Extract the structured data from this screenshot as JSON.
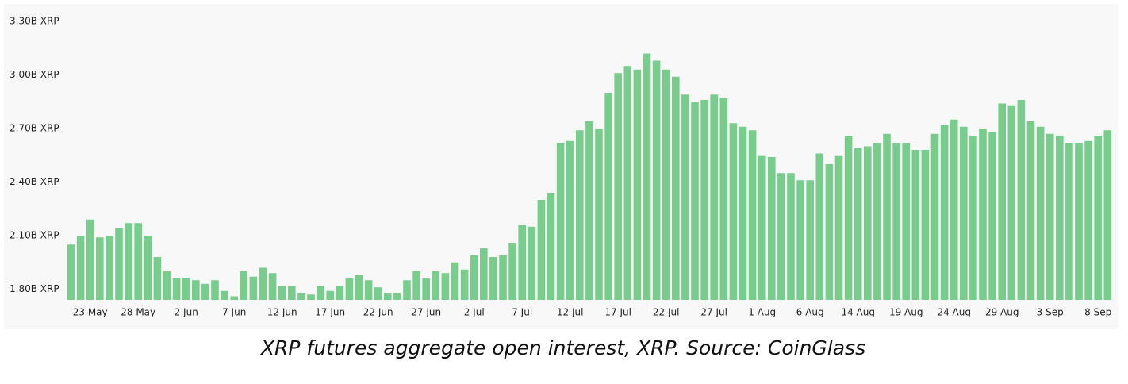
{
  "chart_data": {
    "type": "bar",
    "caption": "XRP futures aggregate open interest, XRP. Source: CoinGlass",
    "color": "#78cd8c",
    "categories": [
      null,
      null,
      "23 May",
      null,
      null,
      null,
      null,
      "28 May",
      null,
      null,
      null,
      null,
      "2 Jun",
      null,
      null,
      null,
      null,
      "7 Jun",
      null,
      null,
      null,
      null,
      "12 Jun",
      null,
      null,
      null,
      null,
      "17 Jun",
      null,
      null,
      null,
      null,
      "22 Jun",
      null,
      null,
      null,
      null,
      "27 Jun",
      null,
      null,
      null,
      null,
      "2 Jul",
      null,
      null,
      null,
      null,
      "7 Jul",
      null,
      null,
      null,
      null,
      "12 Jul",
      null,
      null,
      null,
      null,
      "17 Jul",
      null,
      null,
      null,
      null,
      "22 Jul",
      null,
      null,
      null,
      null,
      "27 Jul",
      null,
      null,
      null,
      null,
      "1 Aug",
      null,
      null,
      null,
      null,
      "6 Aug",
      null,
      null,
      null,
      null,
      "14 Aug",
      null,
      null,
      null,
      null,
      "19 Aug",
      null,
      null,
      null,
      null,
      "24 Aug",
      null,
      null,
      null,
      null,
      "29 Aug",
      null,
      null,
      null,
      null,
      "3 Sep",
      null,
      null,
      null,
      null,
      "8 Sep",
      null
    ],
    "values": [
      2.05,
      2.1,
      2.19,
      2.09,
      2.1,
      2.14,
      2.17,
      2.17,
      2.1,
      1.98,
      1.9,
      1.86,
      1.86,
      1.85,
      1.83,
      1.85,
      1.79,
      1.76,
      1.9,
      1.87,
      1.92,
      1.89,
      1.82,
      1.82,
      1.78,
      1.77,
      1.82,
      1.79,
      1.82,
      1.86,
      1.88,
      1.85,
      1.81,
      1.78,
      1.78,
      1.85,
      1.9,
      1.86,
      1.9,
      1.89,
      1.95,
      1.91,
      1.99,
      2.03,
      1.98,
      1.99,
      2.06,
      2.16,
      2.15,
      2.3,
      2.34,
      2.62,
      2.63,
      2.69,
      2.74,
      2.7,
      2.9,
      3.01,
      3.05,
      3.03,
      3.12,
      3.08,
      3.03,
      2.99,
      2.89,
      2.85,
      2.86,
      2.89,
      2.87,
      2.73,
      2.71,
      2.69,
      2.55,
      2.54,
      2.45,
      2.45,
      2.41,
      2.41,
      2.56,
      2.5,
      2.55,
      2.66,
      2.59,
      2.6,
      2.62,
      2.67,
      2.62,
      2.62,
      2.58,
      2.58,
      2.67,
      2.72,
      2.75,
      2.71,
      2.66,
      2.7,
      2.68,
      2.84,
      2.83,
      2.86,
      2.74,
      2.71,
      2.67,
      2.66,
      2.62,
      2.62,
      2.63,
      2.66,
      2.69
    ],
    "ylim": [
      1.74,
      3.3
    ],
    "yticks": [
      {
        "value": 1.8,
        "label": "1.80B XRP"
      },
      {
        "value": 2.1,
        "label": "2.10B XRP"
      },
      {
        "value": 2.4,
        "label": "2.40B XRP"
      },
      {
        "value": 2.7,
        "label": "2.70B XRP"
      },
      {
        "value": 3.0,
        "label": "3.00B XRP"
      },
      {
        "value": 3.3,
        "label": "3.30B XRP"
      }
    ],
    "grid": false
  }
}
